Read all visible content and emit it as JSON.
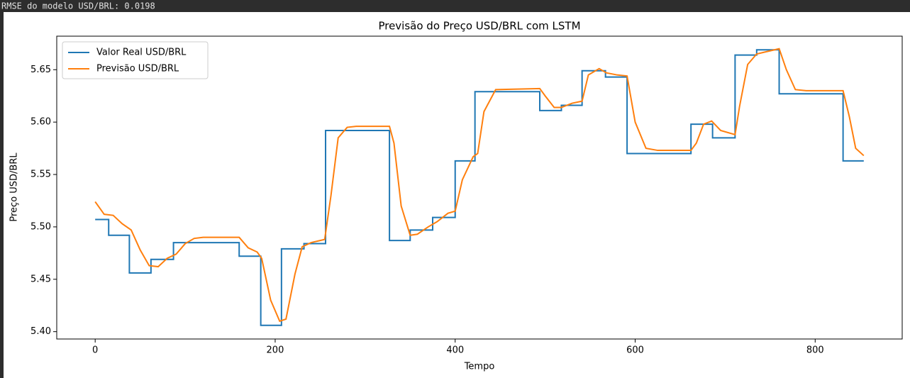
{
  "output_text": "RMSE do modelo USD/BRL: 0.0198",
  "chart_data": {
    "type": "line",
    "title": "Previsão do Preço USD/BRL com LSTM",
    "x_label": "Tempo",
    "y_label": "Preço USD/BRL",
    "legend": "upper left",
    "grid": false,
    "xlim": [
      -42.7,
      896.7
    ],
    "xticks": [
      0,
      200,
      400,
      600,
      800
    ],
    "ylim": [
      5.393,
      5.682
    ],
    "yticks": [
      {
        "value": 5.4,
        "label": "5.40"
      },
      5.45,
      {
        "value": 5.5,
        "label": "5.50"
      },
      5.55,
      {
        "value": 5.6,
        "label": "5.60"
      },
      5.65
    ],
    "series": [
      {
        "name": "Valor Real USD/BRL",
        "color": "#1f77b4",
        "x": [
          0,
          15,
          15,
          38,
          38,
          62,
          62,
          87,
          87,
          160,
          160,
          184,
          184,
          207,
          207,
          232,
          232,
          256,
          256,
          327,
          327,
          350,
          350,
          375,
          375,
          400,
          400,
          422,
          422,
          494,
          494,
          518,
          518,
          541,
          541,
          567,
          567,
          591,
          591,
          662,
          662,
          686,
          686,
          711,
          711,
          735,
          735,
          760,
          760,
          831,
          831,
          854
        ],
        "values": [
          5.507,
          5.507,
          5.492,
          5.492,
          5.456,
          5.456,
          5.469,
          5.469,
          5.485,
          5.485,
          5.472,
          5.472,
          5.406,
          5.406,
          5.479,
          5.479,
          5.484,
          5.484,
          5.592,
          5.592,
          5.487,
          5.487,
          5.497,
          5.497,
          5.509,
          5.509,
          5.563,
          5.563,
          5.629,
          5.629,
          5.611,
          5.611,
          5.616,
          5.616,
          5.649,
          5.649,
          5.643,
          5.643,
          5.57,
          5.57,
          5.598,
          5.598,
          5.585,
          5.585,
          5.664,
          5.664,
          5.669,
          5.669,
          5.627,
          5.627,
          5.563,
          5.563
        ]
      },
      {
        "name": "Previsão USD/BRL",
        "color": "#ff7f0e",
        "x": [
          0,
          10,
          20,
          30,
          40,
          50,
          60,
          70,
          80,
          90,
          100,
          110,
          120,
          160,
          170,
          180,
          185,
          195,
          205,
          212,
          222,
          230,
          240,
          255,
          262,
          270,
          280,
          290,
          327,
          332,
          340,
          350,
          358,
          370,
          380,
          392,
          400,
          408,
          420,
          425,
          432,
          445,
          494,
          500,
          510,
          518,
          530,
          541,
          548,
          560,
          568,
          580,
          591,
          600,
          612,
          625,
          662,
          668,
          676,
          685,
          695,
          711,
          716,
          725,
          735,
          745,
          760,
          768,
          778,
          790,
          831,
          838,
          845,
          854
        ],
        "values": [
          5.524,
          5.512,
          5.511,
          5.503,
          5.497,
          5.478,
          5.463,
          5.462,
          5.47,
          5.474,
          5.484,
          5.489,
          5.49,
          5.49,
          5.48,
          5.476,
          5.47,
          5.43,
          5.41,
          5.412,
          5.455,
          5.481,
          5.485,
          5.488,
          5.53,
          5.585,
          5.595,
          5.596,
          5.596,
          5.58,
          5.52,
          5.492,
          5.493,
          5.5,
          5.505,
          5.513,
          5.515,
          5.545,
          5.567,
          5.57,
          5.61,
          5.631,
          5.632,
          5.625,
          5.614,
          5.614,
          5.618,
          5.62,
          5.645,
          5.651,
          5.647,
          5.645,
          5.644,
          5.6,
          5.575,
          5.573,
          5.573,
          5.58,
          5.598,
          5.601,
          5.592,
          5.588,
          5.615,
          5.655,
          5.665,
          5.667,
          5.67,
          5.65,
          5.631,
          5.63,
          5.63,
          5.605,
          5.575,
          5.568
        ]
      }
    ]
  }
}
